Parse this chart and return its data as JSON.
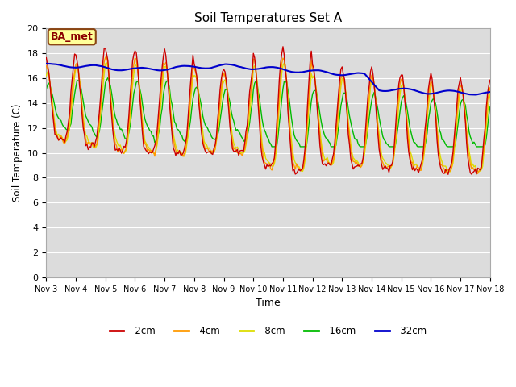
{
  "title": "Soil Temperatures Set A",
  "xlabel": "Time",
  "ylabel": "Soil Temperature (C)",
  "annotation": "BA_met",
  "ylim": [
    0,
    20
  ],
  "yticks": [
    0,
    2,
    4,
    6,
    8,
    10,
    12,
    14,
    16,
    18,
    20
  ],
  "colors": {
    "-2cm": "#cc0000",
    "-4cm": "#ff9900",
    "-8cm": "#dddd00",
    "-16cm": "#00bb00",
    "-32cm": "#0000cc"
  },
  "bg_color": "#dcdcdc",
  "grid_color": "#ffffff",
  "legend_labels": [
    "-2cm",
    "-4cm",
    "-8cm",
    "-16cm",
    "-32cm"
  ],
  "start_day": 3,
  "xtick_labels": [
    "Nov 3",
    "Nov 4",
    "Nov 5",
    "Nov 6",
    "Nov 7",
    "Nov 8",
    "Nov 9",
    "Nov 10",
    "Nov 11",
    "Nov 12",
    "Nov 13",
    "Nov 14",
    "Nov 15",
    "Nov 16",
    "Nov 17",
    "Nov 18"
  ]
}
